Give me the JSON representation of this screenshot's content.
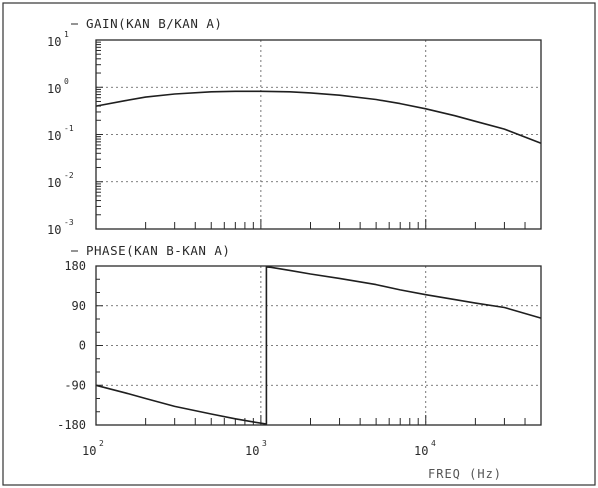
{
  "chart_data": [
    {
      "type": "line",
      "title": "GAIN(KAN B/KAN A)",
      "xscale": "log",
      "yscale": "log",
      "xlim": [
        100,
        50000
      ],
      "ylim": [
        0.001,
        10
      ],
      "ytick_labels": [
        {
          "base": "10",
          "exp": "1"
        },
        {
          "base": "10",
          "exp": "0"
        },
        {
          "base": "10",
          "exp": "-1"
        },
        {
          "base": "10",
          "exp": "-2"
        },
        {
          "base": "10",
          "exp": "-3"
        }
      ],
      "grid": true,
      "series": [
        {
          "x": [
            100,
            150,
            200,
            300,
            500,
            700,
            1000,
            1500,
            2000,
            3000,
            5000,
            7000,
            10000,
            15000,
            20000,
            30000,
            50000
          ],
          "y": [
            0.4,
            0.52,
            0.62,
            0.72,
            0.8,
            0.82,
            0.82,
            0.8,
            0.76,
            0.68,
            0.55,
            0.45,
            0.35,
            0.25,
            0.19,
            0.13,
            0.065
          ]
        }
      ]
    },
    {
      "type": "line",
      "title": "PHASE(KAN B-KAN A)",
      "xlabel": "FREQ (Hz)",
      "xscale": "log",
      "xlim": [
        100,
        50000
      ],
      "ylim": [
        -180,
        180
      ],
      "yticks": [
        180,
        90,
        0,
        -90,
        -180
      ],
      "xtick_labels": [
        {
          "base": "10",
          "exp": "2"
        },
        {
          "base": "10",
          "exp": "3"
        },
        {
          "base": "10",
          "exp": "4"
        }
      ],
      "grid": true,
      "series": [
        {
          "x": [
            100,
            150,
            200,
            300,
            500,
            700,
            900,
            1080,
            1080,
            1150,
            1500,
            2000,
            3000,
            5000,
            7000,
            10000,
            15000,
            20000,
            30000,
            50000
          ],
          "y": [
            -90,
            -107,
            -120,
            -138,
            -155,
            -166,
            -173,
            -178,
            178,
            177,
            170,
            162,
            152,
            138,
            126,
            115,
            104,
            96,
            86,
            62
          ]
        }
      ]
    }
  ]
}
